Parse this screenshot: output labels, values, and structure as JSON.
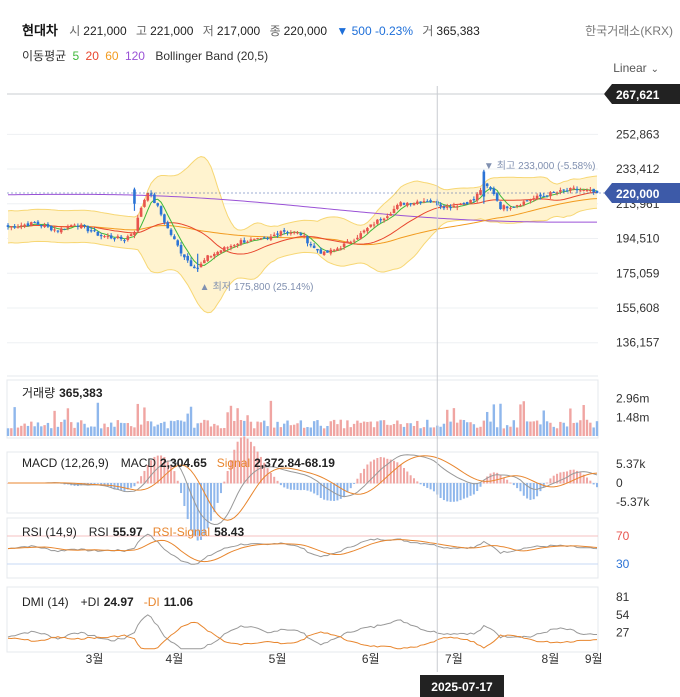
{
  "header": {
    "name": "현대차",
    "open_label": "시",
    "open": "221,000",
    "high_label": "고",
    "high": "221,000",
    "low_label": "저",
    "low": "217,000",
    "close_label": "종",
    "close": "220,000",
    "change_arrow": "▼",
    "change": "500",
    "change_pct": "-0.23%",
    "volume_label": "거",
    "volume": "365,383",
    "exchange": "한국거래소(KRX)"
  },
  "ma_bar": {
    "label": "이동평균",
    "ma": [
      {
        "period": "5",
        "color": "#3fb83a"
      },
      {
        "period": "20",
        "color": "#e8462e"
      },
      {
        "period": "60",
        "color": "#f29b1f"
      },
      {
        "period": "120",
        "color": "#9a52d6"
      }
    ],
    "bollinger": "Bollinger Band (20,5)"
  },
  "scale_toggle": {
    "label": "Linear",
    "icon": "chevron-down-icon"
  },
  "colors": {
    "up": "#e8544e",
    "down": "#2b73d6",
    "band_fill": "#fff3cf",
    "band_line": "#f7d774",
    "last_badge": "#3d5aa8",
    "crosshair_badge": "#222222"
  },
  "chart_data": [
    {
      "type": "candlestick",
      "title": "",
      "y_ticks": [
        "252,863",
        "233,412",
        "213,961",
        "194,510",
        "175,059",
        "155,608",
        "136,157"
      ],
      "y_tick_values": [
        252863,
        233412,
        213961,
        194510,
        175059,
        155608,
        136157
      ],
      "ylim": [
        122000,
        276000
      ],
      "x_ticks": [
        "3월",
        "4월",
        "5월",
        "6월",
        "7월",
        "8월",
        "9월"
      ],
      "crosshair": {
        "date": "2025-07-17",
        "price": "267,621"
      },
      "last_price": "220,000",
      "annotations": {
        "high_marker": "▼",
        "high_label": "최고",
        "high_text": "233,000 (-5.58%)",
        "high_value": 233000,
        "low_marker": "▲",
        "low_label": "최저",
        "low_text": "175,800 (25.14%)",
        "low_value": 175800
      },
      "keypoints": [
        [
          0,
          201000
        ],
        [
          8,
          203000
        ],
        [
          15,
          199000
        ],
        [
          20,
          203000
        ],
        [
          28,
          196000
        ],
        [
          35,
          194000
        ],
        [
          38,
          199000
        ],
        [
          40,
          212000
        ],
        [
          42,
          221000
        ],
        [
          45,
          212000
        ],
        [
          48,
          200000
        ],
        [
          52,
          187000
        ],
        [
          55,
          180000
        ],
        [
          57,
          178000
        ],
        [
          60,
          184000
        ],
        [
          64,
          188000
        ],
        [
          70,
          193000
        ],
        [
          78,
          194000
        ],
        [
          82,
          199000
        ],
        [
          88,
          197000
        ],
        [
          92,
          189000
        ],
        [
          95,
          186000
        ],
        [
          98,
          188000
        ],
        [
          102,
          192000
        ],
        [
          106,
          197000
        ],
        [
          110,
          203000
        ],
        [
          114,
          208000
        ],
        [
          118,
          214000
        ],
        [
          122,
          215000
        ],
        [
          126,
          216000
        ],
        [
          132,
          212000
        ],
        [
          136,
          214000
        ],
        [
          140,
          216000
        ],
        [
          143,
          225000
        ],
        [
          146,
          220000
        ],
        [
          148,
          212000
        ],
        [
          152,
          213000
        ],
        [
          158,
          217000
        ],
        [
          164,
          220000
        ],
        [
          170,
          222000
        ],
        [
          174,
          221000
        ],
        [
          177,
          220000
        ]
      ]
    },
    {
      "type": "bar",
      "title": "거래량",
      "value": "365,383",
      "y_ticks": [
        "2.96m",
        "1.48m"
      ],
      "y_tick_values": [
        2960000,
        1480000
      ]
    },
    {
      "type": "line",
      "title": "MACD (12,26,9)",
      "series": [
        {
          "name": "MACD",
          "value": "2,304.65"
        },
        {
          "name": "Signal",
          "value": "2,372.84"
        },
        {
          "name": "",
          "value": "-68.19"
        }
      ],
      "y_ticks": [
        "5.37k",
        "0",
        "-5.37k"
      ],
      "y_tick_values": [
        5370,
        0,
        -5370
      ]
    },
    {
      "type": "line",
      "title": "RSI (14,9)",
      "series": [
        {
          "name": "RSI",
          "value": "55.97"
        },
        {
          "name": "RSI-Signal",
          "value": "58.43"
        }
      ],
      "y_ticks": [
        "70",
        "30"
      ],
      "y_tick_values": [
        70,
        30
      ]
    },
    {
      "type": "line",
      "title": "DMI (14)",
      "series": [
        {
          "name": "+DI",
          "value": "24.97"
        },
        {
          "name": "-DI",
          "value": "11.06"
        }
      ],
      "y_ticks": [
        "81",
        "54",
        "27"
      ],
      "y_tick_values": [
        81,
        54,
        27
      ]
    }
  ]
}
